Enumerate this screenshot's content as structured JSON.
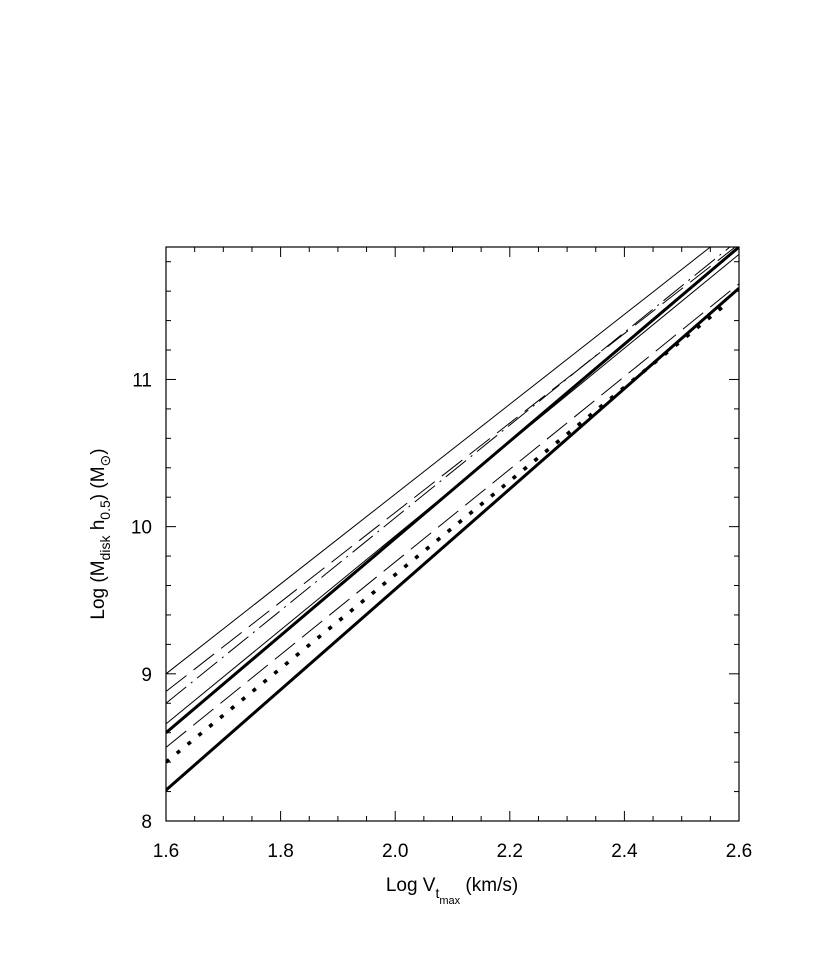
{
  "chart_data": {
    "type": "line",
    "title": "",
    "xlabel": "Log V",
    "xlabel_sub": "t",
    "xlabel_subsub": "max",
    "xlabel_unit": " (km/s)",
    "ylabel": "Log (M",
    "ylabel_sub1": "disk",
    "ylabel_mid": " h",
    "ylabel_sub2": "0.5",
    "ylabel_unit_open": ") (M",
    "ylabel_sun": "⊙",
    "ylabel_close": ")",
    "xlim": [
      1.6,
      2.6
    ],
    "ylim": [
      8.0,
      11.9
    ],
    "xticks": [
      "1.6",
      "1.8",
      "2.0",
      "2.2",
      "2.4",
      "2.6"
    ],
    "yticks": [
      "8",
      "9",
      "10",
      "11"
    ],
    "grid": false,
    "legend": "none",
    "line_color": "#000000",
    "series": [
      {
        "style": "thin-solid",
        "x": [
          1.6,
          2.55
        ],
        "y": [
          9.0,
          11.9
        ]
      },
      {
        "style": "thin-longdash",
        "x": [
          1.6,
          2.6
        ],
        "y": [
          8.88,
          11.92
        ]
      },
      {
        "style": "thin-dashdot",
        "x": [
          1.6,
          2.6
        ],
        "y": [
          8.8,
          11.95
        ]
      },
      {
        "style": "thin-solid",
        "x": [
          1.6,
          2.6
        ],
        "y": [
          8.66,
          11.85
        ]
      },
      {
        "style": "thick-solid",
        "x": [
          1.6,
          2.6
        ],
        "y": [
          8.6,
          11.9
        ]
      },
      {
        "style": "thin-longdash",
        "x": [
          1.6,
          2.6
        ],
        "y": [
          8.5,
          11.65
        ]
      },
      {
        "style": "thick-dotted",
        "x": [
          1.6,
          2.58
        ],
        "y": [
          8.4,
          11.52
        ]
      },
      {
        "style": "thick-solid",
        "x": [
          1.6,
          2.6
        ],
        "y": [
          8.21,
          11.62
        ]
      }
    ]
  }
}
